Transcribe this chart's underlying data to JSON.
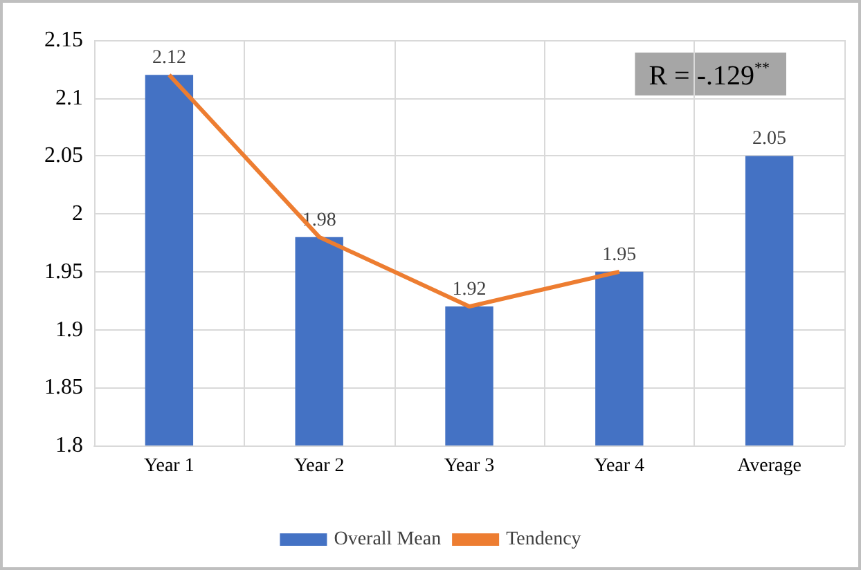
{
  "chart_data": {
    "type": "bar",
    "categories": [
      "Year 1",
      "Year 2",
      "Year 3",
      "Year 4",
      "Average"
    ],
    "series": [
      {
        "name": "Overall Mean",
        "color": "#4472c4",
        "values": [
          2.12,
          1.98,
          1.92,
          1.95,
          2.05
        ],
        "value_labels": [
          "2.12",
          "1.98",
          "1.92",
          "1.95",
          "2.05"
        ]
      },
      {
        "name": "Tendency",
        "type": "line",
        "color": "#ed7d31",
        "values": [
          2.12,
          1.98,
          1.92,
          1.95,
          null
        ],
        "marker": "none",
        "line_style": "solid"
      }
    ],
    "ylim": [
      1.8,
      2.15
    ],
    "yticks": [
      1.8,
      1.85,
      1.9,
      1.95,
      2,
      2.05,
      2.1,
      2.15
    ],
    "grid": true,
    "legend": "bottom",
    "annotations": [
      "R = -.129$^{**}$"
    ]
  }
}
